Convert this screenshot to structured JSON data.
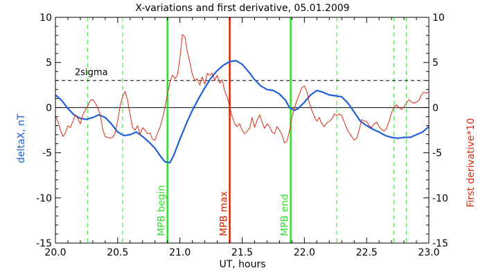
{
  "chart_data": {
    "type": "line",
    "title": "X-variations and first derivative, 05.01.2009",
    "xlabel": "UT, hours",
    "ylabel_left": "deltaX, nT",
    "ylabel_right": "First derivative*10",
    "xlim": [
      20.0,
      23.0
    ],
    "ylim_left": [
      -15,
      10
    ],
    "ylim_right": [
      -15,
      10
    ],
    "x_ticks": [
      "20.0",
      "20.5",
      "21.0",
      "21.5",
      "22.0",
      "22.5",
      "23.0"
    ],
    "x_tick_values": [
      20.0,
      20.5,
      21.0,
      21.5,
      22.0,
      22.5,
      23.0
    ],
    "y_ticks": [
      "10",
      "5",
      "0",
      "-5",
      "-10",
      "-15"
    ],
    "y_tick_values": [
      10,
      5,
      0,
      -5,
      -10,
      -15
    ],
    "colors": {
      "deltaX": "#1f5fd6",
      "derivative": "#d62a10",
      "green": "#33dd33",
      "red_marker": "#dd2200",
      "axis": "#000000"
    },
    "threshold": {
      "label": "2sigma",
      "value": 3.0
    },
    "zero_line": 0,
    "markers": [
      {
        "label": "MPB begin",
        "x": 20.9,
        "color": "green"
      },
      {
        "label": "MPB max",
        "x": 21.4,
        "color": "red"
      },
      {
        "label": "MPB end",
        "x": 21.89,
        "color": "green"
      }
    ],
    "dashed_verticals": [
      20.26,
      20.54,
      22.26,
      22.72,
      22.82
    ],
    "series": [
      {
        "key": "deltaX",
        "x": [
          20.0,
          20.05,
          20.1,
          20.15,
          20.2,
          20.25,
          20.3,
          20.35,
          20.4,
          20.45,
          20.5,
          20.55,
          20.6,
          20.65,
          20.7,
          20.75,
          20.8,
          20.85,
          20.88,
          20.92,
          20.95,
          21.0,
          21.05,
          21.1,
          21.15,
          21.2,
          21.25,
          21.3,
          21.35,
          21.4,
          21.45,
          21.5,
          21.55,
          21.6,
          21.65,
          21.7,
          21.75,
          21.8,
          21.85,
          21.88,
          21.92,
          21.95,
          22.0,
          22.05,
          22.1,
          22.15,
          22.2,
          22.25,
          22.3,
          22.35,
          22.4,
          22.45,
          22.5,
          22.55,
          22.6,
          22.65,
          22.7,
          22.75,
          22.8,
          22.85,
          22.9,
          22.95,
          23.0
        ],
        "y": [
          1.4,
          0.8,
          -0.1,
          -0.8,
          -1.2,
          -1.3,
          -1.1,
          -0.8,
          -1.1,
          -1.8,
          -2.7,
          -3.1,
          -3.0,
          -2.7,
          -3.2,
          -3.8,
          -4.5,
          -5.5,
          -6.0,
          -6.1,
          -5.3,
          -3.5,
          -1.8,
          -0.3,
          1.0,
          2.2,
          3.3,
          4.1,
          4.7,
          5.1,
          5.2,
          4.8,
          4.0,
          3.1,
          2.4,
          2.0,
          1.9,
          1.5,
          0.8,
          0.0,
          -0.3,
          -0.1,
          0.6,
          1.4,
          1.9,
          1.7,
          1.4,
          1.3,
          1.2,
          0.5,
          -0.5,
          -1.5,
          -2.0,
          -2.4,
          -2.7,
          -3.1,
          -3.3,
          -3.4,
          -3.3,
          -3.3,
          -3.0,
          -2.7,
          -2.1
        ]
      },
      {
        "key": "derivative",
        "x": [
          20.0,
          20.02,
          20.04,
          20.06,
          20.08,
          20.1,
          20.12,
          20.14,
          20.16,
          20.18,
          20.2,
          20.22,
          20.24,
          20.26,
          20.28,
          20.3,
          20.32,
          20.34,
          20.36,
          20.38,
          20.4,
          20.42,
          20.44,
          20.46,
          20.48,
          20.5,
          20.52,
          20.54,
          20.56,
          20.58,
          20.6,
          20.62,
          20.64,
          20.66,
          20.68,
          20.7,
          20.72,
          20.74,
          20.76,
          20.78,
          20.8,
          20.82,
          20.84,
          20.86,
          20.88,
          20.9,
          20.92,
          20.94,
          20.96,
          20.98,
          21.0,
          21.02,
          21.04,
          21.06,
          21.08,
          21.1,
          21.12,
          21.14,
          21.16,
          21.18,
          21.2,
          21.22,
          21.24,
          21.26,
          21.28,
          21.3,
          21.32,
          21.34,
          21.36,
          21.38,
          21.4,
          21.42,
          21.44,
          21.46,
          21.48,
          21.5,
          21.52,
          21.54,
          21.56,
          21.58,
          21.6,
          21.62,
          21.64,
          21.66,
          21.68,
          21.7,
          21.72,
          21.74,
          21.76,
          21.78,
          21.8,
          21.82,
          21.84,
          21.86,
          21.88,
          21.9,
          21.92,
          21.94,
          21.96,
          21.98,
          22.0,
          22.02,
          22.04,
          22.06,
          22.08,
          22.1,
          22.12,
          22.14,
          22.16,
          22.18,
          22.2,
          22.22,
          22.24,
          22.26,
          22.28,
          22.3,
          22.32,
          22.34,
          22.36,
          22.38,
          22.4,
          22.42,
          22.44,
          22.46,
          22.48,
          22.5,
          22.52,
          22.54,
          22.56,
          22.58,
          22.6,
          22.62,
          22.64,
          22.66,
          22.68,
          22.7,
          22.72,
          22.74,
          22.76,
          22.78,
          22.8,
          22.82,
          22.84,
          22.86,
          22.88,
          22.9,
          22.92,
          22.94,
          22.96,
          22.98,
          23.0
        ],
        "y": [
          -1.0,
          -1.5,
          -2.5,
          -3.2,
          -2.8,
          -2.0,
          -2.2,
          -1.5,
          -0.8,
          -1.2,
          -1.8,
          -0.8,
          -0.3,
          0.2,
          0.8,
          0.9,
          0.5,
          0.0,
          -0.8,
          -2.4,
          -3.2,
          -3.3,
          -3.4,
          -3.3,
          -2.8,
          -1.5,
          0.2,
          1.2,
          1.8,
          0.8,
          -0.8,
          -2.2,
          -2.5,
          -2.0,
          -3.0,
          -2.2,
          -2.5,
          -2.9,
          -2.8,
          -3.5,
          -3.6,
          -2.8,
          -2.2,
          -1.2,
          0.0,
          1.5,
          2.8,
          3.6,
          3.2,
          3.6,
          5.5,
          8.1,
          7.8,
          6.2,
          5.0,
          3.7,
          3.0,
          3.2,
          2.5,
          3.4,
          2.6,
          3.8,
          3.6,
          3.8,
          3.0,
          3.6,
          2.7,
          3.1,
          1.8,
          1.2,
          0.1,
          -1.0,
          -1.8,
          -2.1,
          -1.8,
          -2.5,
          -2.9,
          -2.6,
          -2.3,
          -1.1,
          -2.2,
          -1.4,
          -0.8,
          -1.6,
          -2.3,
          -1.8,
          -2.1,
          -2.7,
          -2.9,
          -2.1,
          -2.5,
          -3.0,
          -3.9,
          -3.7,
          -2.6,
          -1.1,
          0.0,
          0.8,
          1.5,
          2.2,
          2.4,
          1.8,
          0.5,
          -0.3,
          -1.0,
          -1.5,
          -1.1,
          -1.8,
          -2.1,
          -1.7,
          -1.5,
          -1.3,
          -0.7,
          -0.9,
          -0.7,
          -0.9,
          -1.6,
          -2.3,
          -2.8,
          -3.2,
          -3.6,
          -3.4,
          -2.5,
          -1.3,
          -1.5,
          -1.5,
          -2.0,
          -2.2,
          -1.8,
          -1.6,
          -2.1,
          -2.4,
          -2.6,
          -2.3,
          -1.5,
          -0.6,
          0.1,
          0.3,
          0.0,
          -0.2,
          0.1,
          0.5,
          0.9,
          0.6,
          0.5,
          0.6,
          0.8,
          1.4,
          1.7,
          1.6,
          1.7
        ]
      }
    ]
  }
}
